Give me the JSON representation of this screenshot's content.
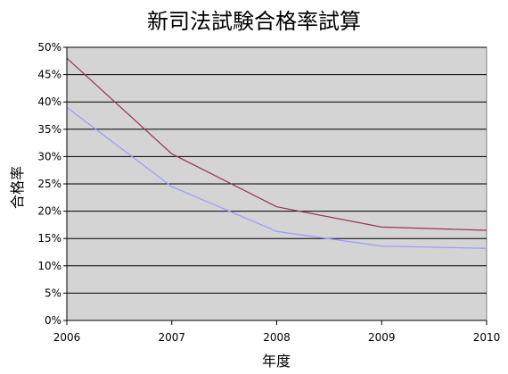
{
  "chart_data": {
    "type": "line",
    "title": "新司法試験合格率試算",
    "xlabel": "年度",
    "ylabel": "合格率",
    "x": [
      2006,
      2007,
      2008,
      2009,
      2010
    ],
    "x_tick_labels": [
      "2006",
      "2007",
      "2008",
      "2009",
      "2010"
    ],
    "ylim": [
      0,
      50
    ],
    "y_tick_labels": [
      "0%",
      "5%",
      "10%",
      "15%",
      "20%",
      "25%",
      "30%",
      "35%",
      "40%",
      "45%",
      "50%"
    ],
    "grid": true,
    "legend": false,
    "series": [
      {
        "values": [
          48,
          30.5,
          20.8,
          17.1,
          16.5
        ],
        "color": "#993355"
      },
      {
        "values": [
          39,
          24.5,
          16.3,
          13.6,
          13.2
        ],
        "color": "#9999FF"
      }
    ],
    "plot_background": "#D4D4D4"
  }
}
